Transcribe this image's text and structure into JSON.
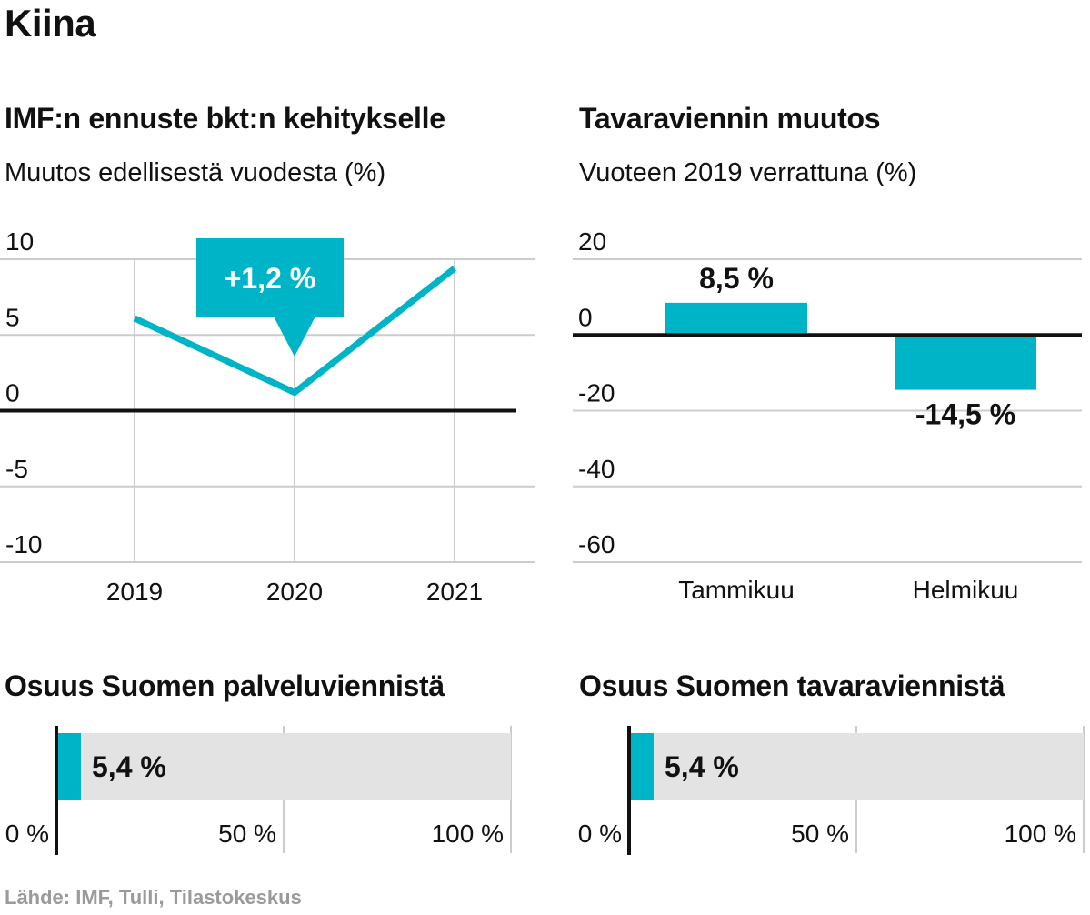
{
  "title": "Kiina",
  "source": "Lähde: IMF, Tulli, Tilastokeskus",
  "colors": {
    "accent": "#00b4c8",
    "grid": "#cccccc",
    "track": "#e3e3e3",
    "axis": "#111111",
    "source_text": "#9a9a9a"
  },
  "chart_data": [
    {
      "type": "line",
      "title": "IMF:n ennuste bkt:n kehitykselle",
      "subtitle": "Muutos edellisestä vuodesta (%)",
      "x": [
        "2019",
        "2020",
        "2021"
      ],
      "values": [
        6.1,
        1.2,
        9.4
      ],
      "ylim": [
        -10,
        10
      ],
      "yticks": [
        "10",
        "5",
        "0",
        "-5",
        "-10"
      ],
      "annotation": {
        "label": "+1,2 %",
        "x": "2020"
      }
    },
    {
      "type": "bar",
      "title": "Tavaraviennin muutos",
      "subtitle": "Vuoteen 2019 verrattuna (%)",
      "categories": [
        "Tammikuu",
        "Helmikuu"
      ],
      "values": [
        8.5,
        -14.5
      ],
      "value_labels": [
        "8,5 %",
        "-14,5 %"
      ],
      "ylim": [
        -60,
        20
      ],
      "yticks": [
        "20",
        "0",
        "-20",
        "-40",
        "-60"
      ]
    },
    {
      "type": "bar",
      "title": "Osuus Suomen palveluviennistä",
      "value": 5.4,
      "value_label": "5,4 %",
      "xlim": [
        0,
        100
      ],
      "xticks": [
        "0 %",
        "50 %",
        "100 %"
      ]
    },
    {
      "type": "bar",
      "title": "Osuus Suomen tavaraviennistä",
      "value": 5.4,
      "value_label": "5,4 %",
      "xlim": [
        0,
        100
      ],
      "xticks": [
        "0 %",
        "50 %",
        "100 %"
      ]
    }
  ]
}
